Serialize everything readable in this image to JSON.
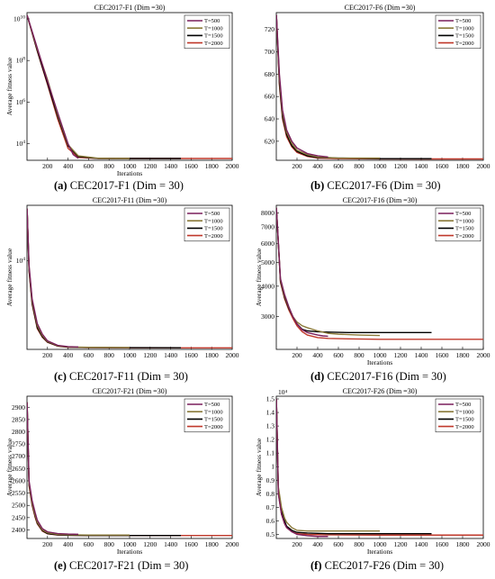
{
  "colors": {
    "T=500": "#7a1f5c",
    "T=1000": "#8b7a3a",
    "T=1500": "#000000",
    "T=2000": "#c0392b"
  },
  "chart_data": [
    {
      "type": "line",
      "title": "CEC2017-F1 (Dim =30)",
      "caption_letter": "(a)",
      "caption_text": " CEC2017-F1 (Dim = 30)",
      "xlabel": "Iterations",
      "ylabel": "Average fitness value",
      "log_scale_y": true,
      "xlim": [
        0,
        2000
      ],
      "ylim": [
        1600,
        20000000000
      ],
      "x_ticks": [
        200,
        400,
        600,
        800,
        1000,
        1200,
        1400,
        1600,
        1800,
        2000
      ],
      "y_ticks": [
        {
          "value": 10000,
          "base": "10",
          "exp": "4"
        },
        {
          "value": 1000000,
          "base": "10",
          "exp": "6"
        },
        {
          "value": 100000000,
          "base": "10",
          "exp": "8"
        },
        {
          "value": 10000000000,
          "base": "10",
          "exp": "10"
        }
      ],
      "y_multiplier": "",
      "legend_position": "top-right",
      "series": [
        {
          "name": "T=500",
          "x": [
            1,
            100,
            200,
            300,
            400,
            450,
            500
          ],
          "y": [
            15000000000,
            400000000,
            10000000,
            300000,
            10000,
            3000,
            2000
          ]
        },
        {
          "name": "T=1000",
          "x": [
            1,
            100,
            200,
            300,
            400,
            500,
            700,
            1000
          ],
          "y": [
            15000000000,
            350000000,
            12000000,
            250000,
            9000,
            2600,
            2000,
            1950
          ]
        },
        {
          "name": "T=1500",
          "x": [
            1,
            100,
            200,
            300,
            400,
            500,
            700,
            1000,
            1500
          ],
          "y": [
            15000000000,
            300000000,
            8000000,
            200000,
            8000,
            2400,
            1950,
            1950,
            1950
          ]
        },
        {
          "name": "T=2000",
          "x": [
            1,
            100,
            200,
            300,
            400,
            500,
            700,
            1000,
            1500,
            2000
          ],
          "y": [
            15000000000,
            280000000,
            7000000,
            150000,
            6000,
            2200,
            1950,
            1950,
            1950,
            1950
          ]
        }
      ]
    },
    {
      "type": "line",
      "title": "CEC2017-F6 (Dim =30)",
      "caption_letter": "(b)",
      "caption_text": " CEC2017-F6 (Dim = 30)",
      "xlabel": "",
      "ylabel": "",
      "log_scale_y": false,
      "xlim": [
        0,
        2000
      ],
      "ylim": [
        603,
        735
      ],
      "x_ticks": [
        200,
        400,
        600,
        800,
        1000,
        1200,
        1400,
        1600,
        1800,
        2000
      ],
      "y_ticks": [
        {
          "value": 620,
          "label": "620"
        },
        {
          "value": 640,
          "label": "640"
        },
        {
          "value": 660,
          "label": "660"
        },
        {
          "value": 680,
          "label": "680"
        },
        {
          "value": 700,
          "label": "700"
        },
        {
          "value": 720,
          "label": "720"
        }
      ],
      "y_multiplier": "",
      "legend_position": "top-right",
      "series": [
        {
          "name": "T=500",
          "x": [
            1,
            30,
            60,
            100,
            150,
            200,
            300,
            400,
            500
          ],
          "y": [
            733,
            680,
            648,
            630,
            620,
            614,
            609,
            607,
            606
          ]
        },
        {
          "name": "T=1000",
          "x": [
            1,
            30,
            60,
            100,
            150,
            200,
            300,
            400,
            600,
            1000
          ],
          "y": [
            733,
            676,
            645,
            628,
            618,
            612,
            608,
            606,
            605,
            605
          ]
        },
        {
          "name": "T=1500",
          "x": [
            1,
            30,
            60,
            100,
            150,
            200,
            300,
            400,
            600,
            1000,
            1500
          ],
          "y": [
            733,
            672,
            642,
            626,
            616,
            611,
            607,
            605.5,
            605,
            604.5,
            604.5
          ]
        },
        {
          "name": "T=2000",
          "x": [
            1,
            30,
            60,
            100,
            150,
            200,
            300,
            400,
            600,
            1000,
            1500,
            2000
          ],
          "y": [
            733,
            670,
            640,
            624,
            615,
            610,
            606.5,
            605,
            604.5,
            604.3,
            604.2,
            604.2
          ]
        }
      ]
    },
    {
      "type": "line",
      "title": "CEC2017-F11 (Dim =30)",
      "caption_letter": "(c)",
      "caption_text": " CEC2017-F11 (Dim = 30)",
      "xlabel": "",
      "ylabel": "Average fitness value",
      "log_scale_y": true,
      "xlim": [
        0,
        2000
      ],
      "ylim": [
        1180,
        38000
      ],
      "x_ticks": [
        200,
        400,
        600,
        800,
        1000,
        1200,
        1400,
        1600,
        1800,
        2000
      ],
      "y_ticks": [
        {
          "value": 10000,
          "base": "10",
          "exp": "4"
        }
      ],
      "y_multiplier": "",
      "legend_position": "top-right",
      "series": [
        {
          "name": "T=500",
          "x": [
            1,
            20,
            50,
            100,
            150,
            200,
            300,
            400,
            500
          ],
          "y": [
            35000,
            9000,
            4000,
            2200,
            1700,
            1450,
            1300,
            1260,
            1250
          ]
        },
        {
          "name": "T=1000",
          "x": [
            1,
            20,
            50,
            100,
            150,
            200,
            300,
            400,
            600,
            1000
          ],
          "y": [
            35000,
            8500,
            3800,
            2100,
            1650,
            1430,
            1290,
            1250,
            1240,
            1235
          ]
        },
        {
          "name": "T=1500",
          "x": [
            1,
            20,
            50,
            100,
            150,
            200,
            300,
            400,
            600,
            1000,
            1500
          ],
          "y": [
            35000,
            8000,
            3600,
            2000,
            1600,
            1410,
            1280,
            1245,
            1235,
            1230,
            1228
          ]
        },
        {
          "name": "T=2000",
          "x": [
            1,
            20,
            50,
            100,
            150,
            200,
            300,
            400,
            600,
            1000,
            1500,
            2000
          ],
          "y": [
            35000,
            7800,
            3500,
            1950,
            1580,
            1400,
            1275,
            1240,
            1230,
            1226,
            1224,
            1224
          ]
        }
      ]
    },
    {
      "type": "line",
      "title": "CEC2017-F16 (Dim =30)",
      "caption_letter": "(d)",
      "caption_text": " CEC2017-F16 (Dim = 30)",
      "xlabel": "Iterations",
      "ylabel": "Average fitness value",
      "log_scale_y": true,
      "xlim": [
        0,
        2000
      ],
      "ylim": [
        2200,
        8600
      ],
      "x_ticks": [
        200,
        400,
        600,
        800,
        1000,
        1200,
        1400,
        1600,
        1800,
        2000
      ],
      "y_ticks": [
        {
          "value": 3000,
          "label": "3000"
        },
        {
          "value": 4000,
          "label": "4000"
        },
        {
          "value": 5000,
          "label": "5000"
        },
        {
          "value": 6000,
          "label": "6000"
        },
        {
          "value": 7000,
          "label": "7000"
        },
        {
          "value": 8000,
          "label": "8000"
        }
      ],
      "y_multiplier": "",
      "legend_position": "top-right",
      "series": [
        {
          "name": "T=500",
          "x": [
            1,
            40,
            80,
            120,
            160,
            200,
            250,
            300,
            350,
            400,
            450,
            500
          ],
          "y": [
            8400,
            4300,
            3700,
            3300,
            3000,
            2800,
            2650,
            2580,
            2550,
            2520,
            2500,
            2490
          ]
        },
        {
          "name": "T=1000",
          "x": [
            1,
            40,
            80,
            120,
            160,
            200,
            250,
            300,
            400,
            500,
            600,
            800,
            1000
          ],
          "y": [
            8400,
            4250,
            3650,
            3280,
            3000,
            2850,
            2750,
            2700,
            2620,
            2560,
            2540,
            2520,
            2510
          ]
        },
        {
          "name": "T=1500",
          "x": [
            1,
            40,
            80,
            120,
            160,
            200,
            250,
            300,
            400,
            500,
            700,
            1000,
            1500
          ],
          "y": [
            8400,
            4200,
            3600,
            3250,
            3000,
            2800,
            2660,
            2620,
            2600,
            2590,
            2580,
            2580,
            2580
          ]
        },
        {
          "name": "T=2000",
          "x": [
            1,
            40,
            80,
            120,
            160,
            200,
            250,
            300,
            400,
            500,
            700,
            1000,
            1500,
            2000
          ],
          "y": [
            8400,
            4150,
            3550,
            3200,
            2950,
            2750,
            2600,
            2520,
            2460,
            2440,
            2430,
            2420,
            2420,
            2420
          ]
        }
      ]
    },
    {
      "type": "line",
      "title": "CEC2017-F21 (Dim =30)",
      "caption_letter": "(e)",
      "caption_text": " CEC2017-F21 (Dim = 30)",
      "xlabel": "Iterations",
      "ylabel": "Average fitness value",
      "log_scale_y": false,
      "xlim": [
        0,
        2000
      ],
      "ylim": [
        2365,
        2945
      ],
      "x_ticks": [
        200,
        400,
        600,
        800,
        1000,
        1200,
        1400,
        1600,
        1800,
        2000
      ],
      "y_ticks": [
        {
          "value": 2400,
          "label": "2400"
        },
        {
          "value": 2450,
          "label": "2450"
        },
        {
          "value": 2500,
          "label": "2500"
        },
        {
          "value": 2550,
          "label": "2550"
        },
        {
          "value": 2600,
          "label": "2600"
        },
        {
          "value": 2650,
          "label": "2650"
        },
        {
          "value": 2700,
          "label": "2700"
        },
        {
          "value": 2750,
          "label": "2750"
        },
        {
          "value": 2800,
          "label": "2800"
        },
        {
          "value": 2850,
          "label": "2850"
        },
        {
          "value": 2900,
          "label": "2900"
        }
      ],
      "y_multiplier": "",
      "legend_position": "top-right",
      "series": [
        {
          "name": "T=500",
          "x": [
            1,
            20,
            50,
            80,
            100,
            150,
            200,
            300,
            400,
            500
          ],
          "y": [
            2920,
            2600,
            2520,
            2470,
            2440,
            2405,
            2392,
            2385,
            2383,
            2382
          ]
        },
        {
          "name": "T=1000",
          "x": [
            1,
            20,
            50,
            80,
            100,
            150,
            200,
            300,
            400,
            600,
            1000
          ],
          "y": [
            2920,
            2590,
            2510,
            2460,
            2432,
            2400,
            2388,
            2382,
            2380,
            2379,
            2379
          ]
        },
        {
          "name": "T=1500",
          "x": [
            1,
            20,
            50,
            80,
            100,
            150,
            200,
            300,
            400,
            600,
            1000,
            1500
          ],
          "y": [
            2920,
            2585,
            2505,
            2455,
            2428,
            2397,
            2385,
            2380,
            2378,
            2377,
            2377,
            2377
          ]
        },
        {
          "name": "T=2000",
          "x": [
            1,
            20,
            50,
            80,
            100,
            150,
            200,
            300,
            400,
            600,
            1000,
            1500,
            2000
          ],
          "y": [
            2920,
            2580,
            2500,
            2450,
            2425,
            2395,
            2384,
            2379,
            2378,
            2377,
            2377,
            2377,
            2377
          ]
        }
      ]
    },
    {
      "type": "line",
      "title": "CEC2017-F26 (Dim =30)",
      "caption_letter": "(f)",
      "caption_text": " CEC2017-F26 (Dim = 30)",
      "xlabel": "Iterations",
      "ylabel": "Average fitness value",
      "log_scale_y": false,
      "xlim": [
        0,
        2000
      ],
      "ylim": [
        0.47,
        1.52
      ],
      "x_ticks": [
        200,
        400,
        600,
        800,
        1000,
        1200,
        1400,
        1600,
        1800,
        2000
      ],
      "y_ticks": [
        {
          "value": 0.5,
          "label": "0.5"
        },
        {
          "value": 0.6,
          "label": "0.6"
        },
        {
          "value": 0.7,
          "label": "0.7"
        },
        {
          "value": 0.8,
          "label": "0.8"
        },
        {
          "value": 0.9,
          "label": "0.9"
        },
        {
          "value": 1.0,
          "label": "1"
        },
        {
          "value": 1.1,
          "label": "1.1"
        },
        {
          "value": 1.2,
          "label": "1.2"
        },
        {
          "value": 1.3,
          "label": "1.3"
        },
        {
          "value": 1.4,
          "label": "1.4"
        },
        {
          "value": 1.5,
          "label": "1.5"
        }
      ],
      "y_multiplier": "10⁴",
      "legend_position": "top-right",
      "series": [
        {
          "name": "T=500",
          "x": [
            1,
            20,
            50,
            80,
            100,
            150,
            200,
            300,
            400,
            500
          ],
          "y": [
            1.5,
            0.8,
            0.65,
            0.58,
            0.55,
            0.52,
            0.5,
            0.49,
            0.485,
            0.485
          ]
        },
        {
          "name": "T=1000",
          "x": [
            1,
            20,
            50,
            80,
            100,
            150,
            200,
            300,
            500,
            1000
          ],
          "y": [
            1.5,
            0.85,
            0.7,
            0.62,
            0.59,
            0.55,
            0.53,
            0.525,
            0.525,
            0.525
          ]
        },
        {
          "name": "T=1500",
          "x": [
            1,
            20,
            50,
            80,
            100,
            150,
            200,
            300,
            500,
            1000,
            1500
          ],
          "y": [
            1.5,
            0.82,
            0.67,
            0.6,
            0.56,
            0.53,
            0.515,
            0.51,
            0.505,
            0.505,
            0.505
          ]
        },
        {
          "name": "T=2000",
          "x": [
            1,
            20,
            50,
            80,
            100,
            150,
            200,
            300,
            500,
            1000,
            1500,
            2000
          ],
          "y": [
            1.5,
            0.8,
            0.65,
            0.58,
            0.55,
            0.52,
            0.505,
            0.5,
            0.497,
            0.495,
            0.495,
            0.495
          ]
        }
      ]
    }
  ]
}
